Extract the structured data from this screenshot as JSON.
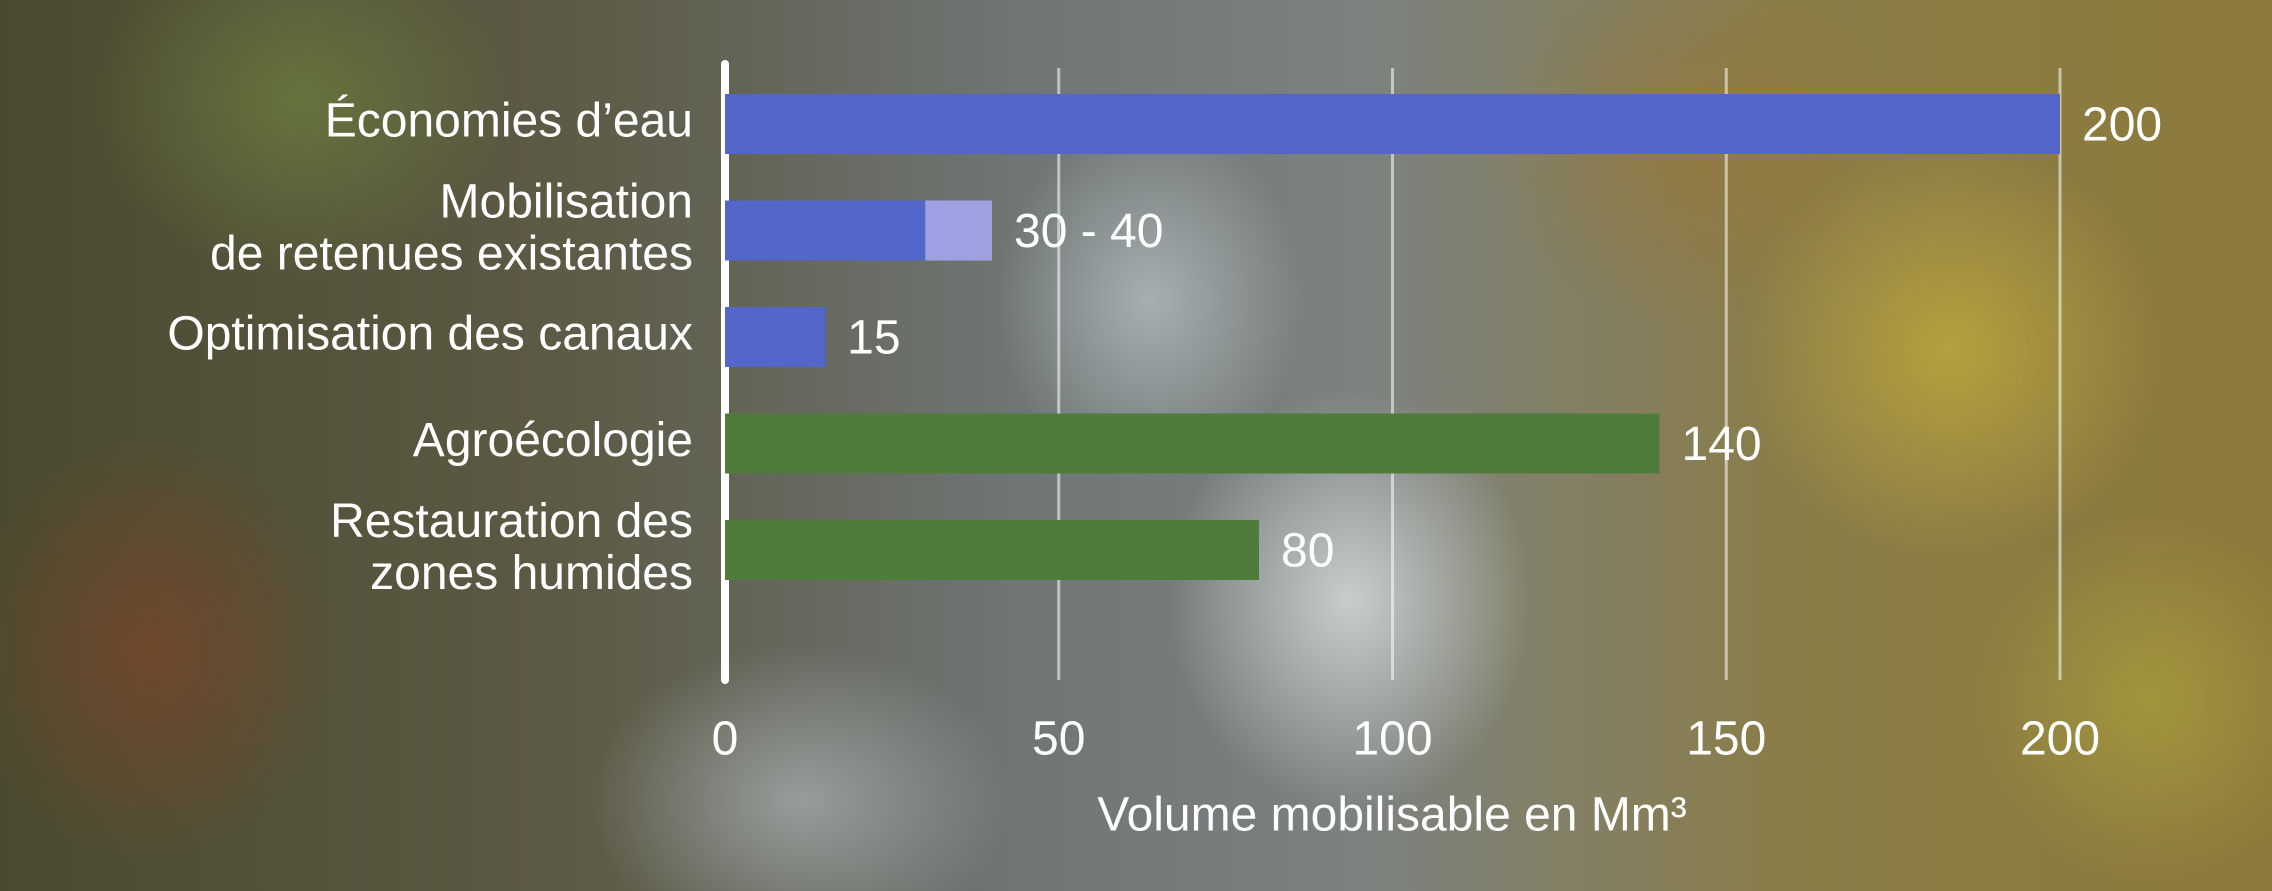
{
  "chart_data": {
    "type": "bar",
    "orientation": "horizontal",
    "categories": [
      "Économies d’eau",
      "Mobilisation\nde retenues existantes",
      "Optimisation des canaux",
      "Agroécologie",
      "Restauration des\nzones humides"
    ],
    "values": [
      200,
      30,
      15,
      140,
      80
    ],
    "range_high": [
      null,
      40,
      null,
      null,
      null
    ],
    "value_labels": [
      "200",
      "30 - 40",
      "15",
      "140",
      "80"
    ],
    "colors": [
      "#5366c9",
      "#5366c9",
      "#5366c9",
      "#4e7d3b",
      "#4e7d3b"
    ],
    "range_color": "#9fa0e2",
    "xlim": [
      0,
      200
    ],
    "xticks": [
      0,
      50,
      100,
      150,
      200
    ],
    "xlabel": "Volume mobilisable en Mm³",
    "grid": true
  }
}
